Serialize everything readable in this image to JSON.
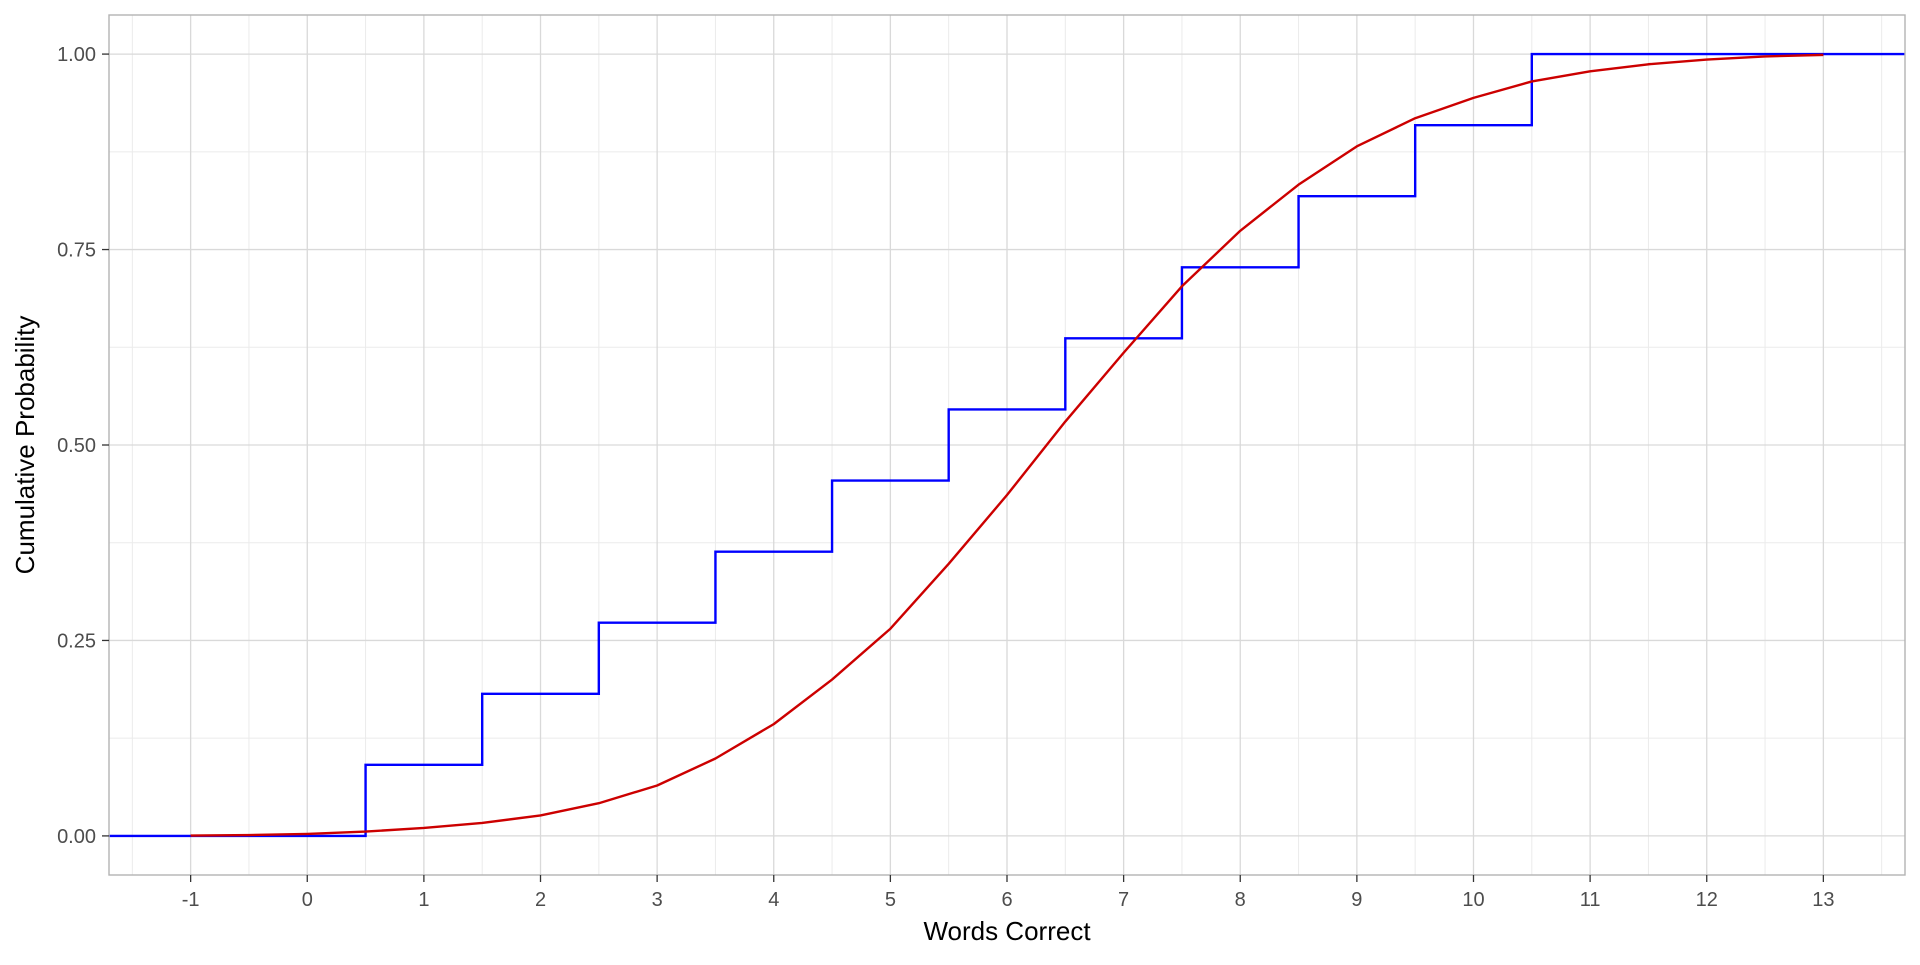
{
  "chart_data": {
    "type": "line",
    "title": "",
    "xlabel": "Words Correct",
    "ylabel": "Cumulative Probability",
    "xlim": [
      -1.7,
      13.7
    ],
    "ylim": [
      -0.05,
      1.05
    ],
    "x_ticks": [
      -1,
      0,
      1,
      2,
      3,
      4,
      5,
      6,
      7,
      8,
      9,
      10,
      11,
      12,
      13
    ],
    "x_tick_labels": [
      "-1",
      "0",
      "1",
      "2",
      "3",
      "4",
      "5",
      "6",
      "7",
      "8",
      "9",
      "10",
      "11",
      "12",
      "13"
    ],
    "y_ticks": [
      0,
      0.25,
      0.5,
      0.75,
      1.0
    ],
    "y_tick_labels": [
      "0.00",
      "0.25",
      "0.50",
      "0.75",
      "1.00"
    ],
    "grid": true,
    "legend": "none",
    "series": [
      {
        "kind": "step",
        "color": "#0000ff",
        "x": [
          -1.7,
          0.5,
          1.5,
          2.5,
          3.5,
          4.5,
          5.5,
          6.5,
          7.5,
          8.5,
          9.5,
          10.5,
          13.7
        ],
        "y": [
          0,
          0.0909,
          0.1818,
          0.2727,
          0.3636,
          0.4545,
          0.5455,
          0.6364,
          0.7273,
          0.8182,
          0.9091,
          1.0,
          1.0
        ]
      },
      {
        "kind": "curve",
        "color": "#cc0000",
        "x": [
          -1,
          -0.5,
          0,
          0.5,
          1,
          1.5,
          2,
          2.5,
          3,
          3.5,
          4,
          4.5,
          5,
          5.5,
          6,
          6.5,
          7,
          7.5,
          8,
          8.5,
          9,
          9.5,
          10,
          10.5,
          11,
          11.5,
          12,
          12.5,
          13
        ],
        "y": [
          0.0004,
          0.0011,
          0.0025,
          0.0055,
          0.0102,
          0.0166,
          0.0262,
          0.0418,
          0.0645,
          0.099,
          0.143,
          0.2,
          0.265,
          0.348,
          0.436,
          0.53,
          0.618,
          0.703,
          0.774,
          0.833,
          0.882,
          0.918,
          0.944,
          0.965,
          0.978,
          0.987,
          0.993,
          0.997,
          0.999
        ]
      }
    ]
  }
}
